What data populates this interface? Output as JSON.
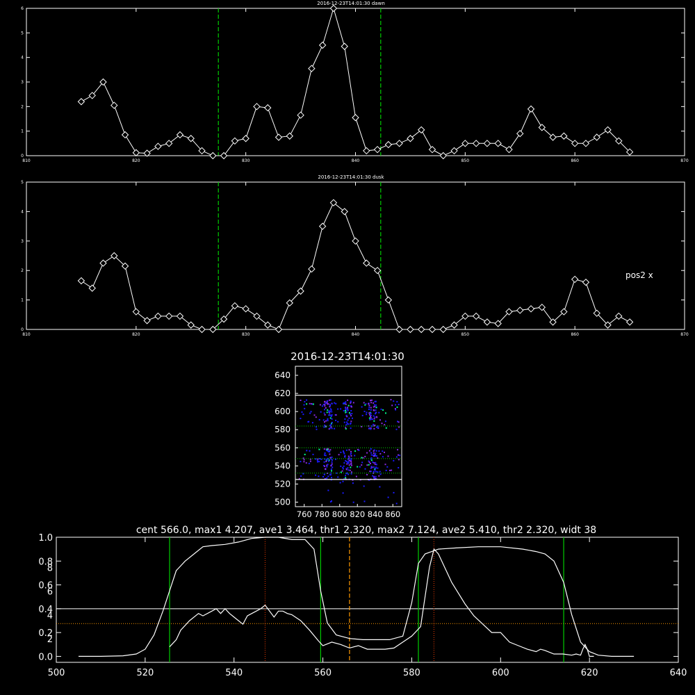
{
  "colors": {
    "background": "#000000",
    "axis": "#ffffff",
    "marker": "#ffffff",
    "guide_green": "#00cc00",
    "guide_orange": "#ff9900",
    "guide_red": "#cc3300",
    "heat_low": "#1a1aff",
    "heat_mid": "#8a2be2",
    "heat_high": "#00ff88"
  },
  "chart_data": [
    {
      "id": "dawn",
      "type": "line",
      "title": "2016-12-23T14:01:30 dawn",
      "xlim": [
        810,
        870
      ],
      "ylim": [
        0,
        6
      ],
      "xticks": [
        "810",
        "820",
        "830",
        "840",
        "850",
        "860",
        "870"
      ],
      "yticks": [
        "0",
        "1",
        "2",
        "3",
        "4",
        "5",
        "6"
      ],
      "marker": "diamond",
      "vlines": [
        827.5,
        842.3
      ],
      "x": [
        815,
        816,
        817,
        818,
        819,
        820,
        821,
        822,
        823,
        824,
        825,
        826,
        827,
        828,
        829,
        830,
        831,
        832,
        833,
        834,
        835,
        836,
        837,
        838,
        839,
        840,
        841,
        842,
        843,
        844,
        845,
        846,
        847,
        848,
        849,
        850,
        851,
        852,
        853,
        854,
        855,
        856,
        857,
        858,
        859,
        860,
        861,
        862,
        863,
        864,
        865
      ],
      "y": [
        2.2,
        2.45,
        3.0,
        2.05,
        0.85,
        0.12,
        0.1,
        0.38,
        0.5,
        0.85,
        0.7,
        0.2,
        0.0,
        0.0,
        0.6,
        0.7,
        2.0,
        1.95,
        0.75,
        0.8,
        1.65,
        3.55,
        4.5,
        6.0,
        4.45,
        1.55,
        0.2,
        0.25,
        0.45,
        0.5,
        0.7,
        1.05,
        0.25,
        0.0,
        0.2,
        0.5,
        0.5,
        0.5,
        0.5,
        0.25,
        0.9,
        1.9,
        1.15,
        0.75,
        0.8,
        0.5,
        0.5,
        0.75,
        1.05,
        0.6,
        0.15
      ]
    },
    {
      "id": "dusk",
      "type": "line",
      "title": "2016-12-23T14:01:30 dusk",
      "xlim": [
        810,
        870
      ],
      "ylim": [
        0,
        5
      ],
      "xticks": [
        "810",
        "820",
        "830",
        "840",
        "850",
        "860",
        "870"
      ],
      "yticks": [
        "0",
        "1",
        "2",
        "3",
        "4",
        "5"
      ],
      "marker": "diamond",
      "vlines": [
        827.5,
        842.3
      ],
      "annotation": "pos2 x",
      "x": [
        815,
        816,
        817,
        818,
        819,
        820,
        821,
        822,
        823,
        824,
        825,
        826,
        827,
        828,
        829,
        830,
        831,
        832,
        833,
        834,
        835,
        836,
        837,
        838,
        839,
        840,
        841,
        842,
        843,
        844,
        845,
        846,
        847,
        848,
        849,
        850,
        851,
        852,
        853,
        854,
        855,
        856,
        857,
        858,
        859,
        860,
        861,
        862,
        863,
        864,
        865
      ],
      "y": [
        1.65,
        1.4,
        2.25,
        2.5,
        2.15,
        0.6,
        0.3,
        0.45,
        0.45,
        0.45,
        0.15,
        0.0,
        0.0,
        0.35,
        0.8,
        0.7,
        0.45,
        0.15,
        0.0,
        0.9,
        1.3,
        2.05,
        3.5,
        4.3,
        4.0,
        3.0,
        2.25,
        2.0,
        1.0,
        0.0,
        0.0,
        0.0,
        0.0,
        0.0,
        0.15,
        0.45,
        0.45,
        0.25,
        0.2,
        0.6,
        0.65,
        0.7,
        0.75,
        0.25,
        0.6,
        1.7,
        1.6,
        0.55,
        0.15,
        0.45,
        0.25
      ]
    },
    {
      "id": "image",
      "type": "heatmap",
      "title": "2016-12-23T14:01:30",
      "xlim": [
        750,
        870
      ],
      "ylim": [
        495,
        650
      ],
      "xticks": [
        "760",
        "780",
        "800",
        "820",
        "840",
        "860"
      ],
      "yticks": [
        "500",
        "520",
        "540",
        "560",
        "580",
        "600",
        "620",
        "640"
      ],
      "hlines": [
        525,
        618
      ],
      "dotted_hlines": [
        532,
        548,
        560,
        584
      ],
      "bands": [
        [
          525,
          560
        ],
        [
          581,
          614
        ]
      ]
    },
    {
      "id": "profile",
      "type": "line",
      "title": "cent 566.0, max1 4.207, ave1 3.464, thr1 2.320, max2 7.124, ave2 5.410, thr2 2.320, widt 38",
      "xlim": [
        500,
        640
      ],
      "ylim": [
        0,
        1
      ],
      "xticks": [
        "500",
        "520",
        "540",
        "560",
        "580",
        "600",
        "620",
        "640"
      ],
      "yticks_left": [
        "0.0",
        "0.2",
        "0.4",
        "0.6",
        "0.8",
        "1.0"
      ],
      "yticks_left_inner": [
        "2",
        "4",
        "6",
        "8"
      ],
      "hline_solid": 0.4,
      "hline_dotted": 0.275,
      "green_vlines": [
        525.5,
        559.5,
        581.5,
        614.2
      ],
      "red_vlines": [
        547,
        585
      ],
      "orange_vline": 566,
      "series": [
        {
          "x": [
            505,
            510,
            515,
            518,
            520,
            522,
            524,
            525.5,
            527,
            529,
            531,
            533,
            535,
            538,
            541,
            544,
            547,
            550,
            553,
            556,
            558,
            559.5,
            561,
            563,
            566,
            569,
            572,
            575,
            578,
            580,
            581.5,
            583,
            586,
            590,
            595,
            600,
            605,
            608,
            610,
            612,
            614.2,
            616,
            618,
            620,
            622,
            625,
            630
          ],
          "y": [
            0.0,
            0.0,
            0.005,
            0.02,
            0.06,
            0.18,
            0.38,
            0.55,
            0.72,
            0.8,
            0.86,
            0.92,
            0.93,
            0.94,
            0.96,
            0.99,
            1.0,
            1.0,
            0.98,
            0.98,
            0.9,
            0.55,
            0.28,
            0.18,
            0.15,
            0.14,
            0.14,
            0.14,
            0.17,
            0.45,
            0.78,
            0.86,
            0.9,
            0.91,
            0.92,
            0.92,
            0.9,
            0.88,
            0.86,
            0.8,
            0.62,
            0.35,
            0.12,
            0.04,
            0.01,
            0.0,
            0.0
          ]
        },
        {
          "x": [
            525.5,
            527,
            528,
            530,
            532,
            533,
            535,
            536,
            537,
            538,
            539,
            540,
            541,
            542,
            543,
            544,
            545,
            546,
            547,
            548,
            549,
            550,
            551,
            552,
            553,
            555,
            557,
            559,
            560,
            562,
            564,
            566,
            568,
            570,
            572,
            574,
            576,
            578,
            580,
            582,
            583,
            584,
            585,
            586,
            587,
            588,
            589,
            590,
            592,
            594,
            596,
            598,
            600,
            602,
            604,
            606,
            608,
            609,
            610,
            612,
            614,
            616,
            617,
            618,
            618.5,
            619,
            619.5,
            620,
            621
          ],
          "y": [
            0.08,
            0.14,
            0.22,
            0.3,
            0.36,
            0.34,
            0.38,
            0.4,
            0.36,
            0.4,
            0.36,
            0.33,
            0.3,
            0.27,
            0.34,
            0.36,
            0.38,
            0.4,
            0.43,
            0.38,
            0.33,
            0.38,
            0.38,
            0.36,
            0.35,
            0.3,
            0.22,
            0.13,
            0.09,
            0.12,
            0.1,
            0.07,
            0.09,
            0.06,
            0.06,
            0.06,
            0.07,
            0.12,
            0.17,
            0.25,
            0.5,
            0.75,
            0.9,
            0.86,
            0.78,
            0.7,
            0.62,
            0.56,
            0.44,
            0.34,
            0.27,
            0.2,
            0.2,
            0.12,
            0.09,
            0.06,
            0.04,
            0.06,
            0.05,
            0.02,
            0.02,
            0.01,
            0.02,
            0.01,
            0.06,
            0.1,
            0.06,
            0.0,
            0.0
          ]
        }
      ]
    }
  ]
}
